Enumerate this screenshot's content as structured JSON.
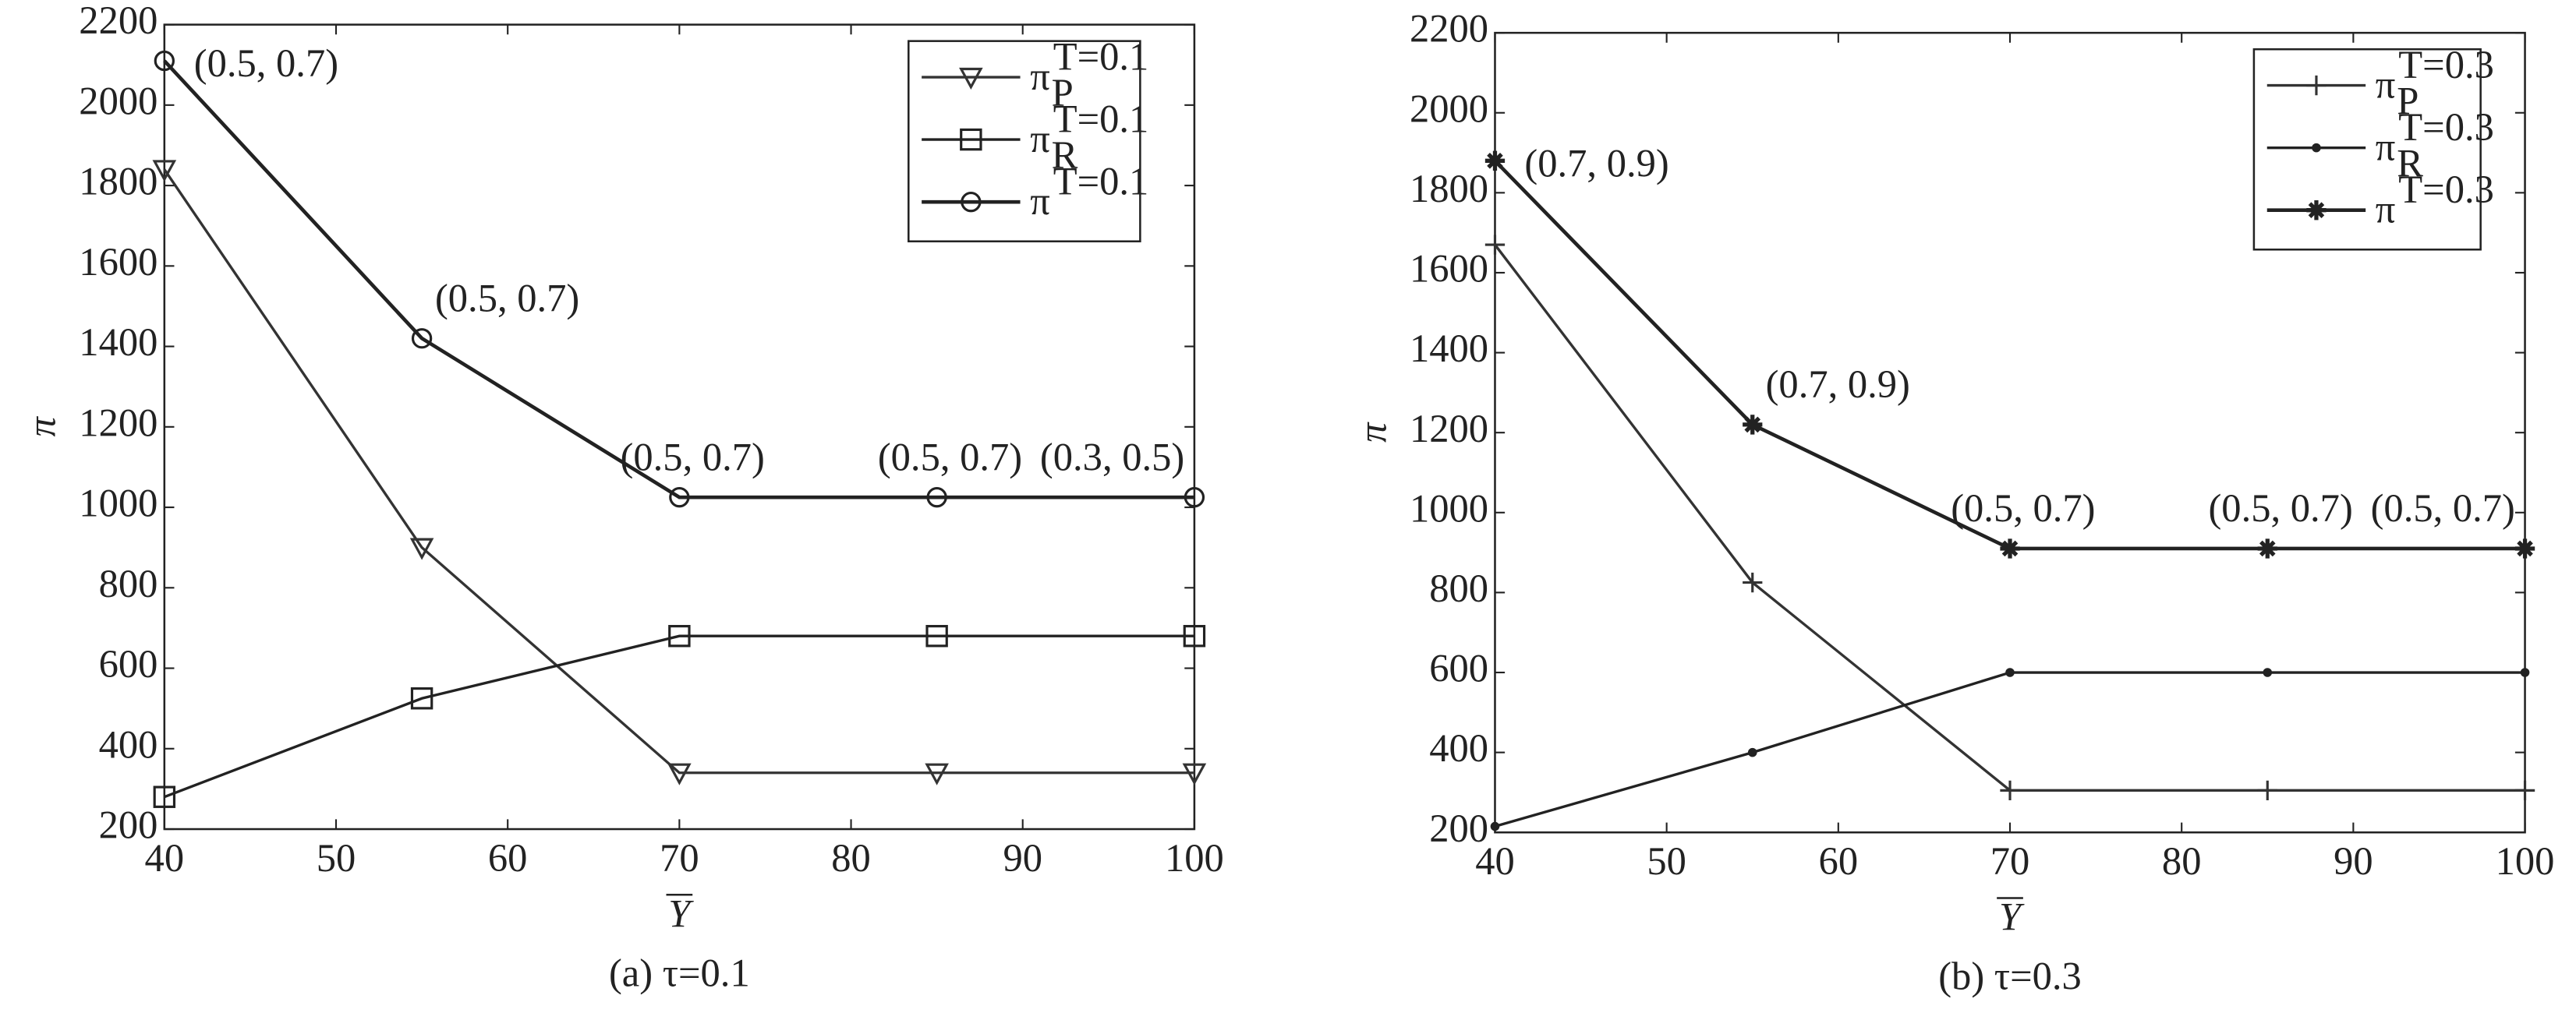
{
  "chart_data": [
    {
      "type": "line",
      "caption": "(a) τ=0.1",
      "xlabel": "Y",
      "ylabel": "π",
      "x": [
        40,
        55,
        70,
        85,
        100
      ],
      "xlim": [
        40,
        100
      ],
      "xticks": [
        40,
        50,
        60,
        70,
        80,
        90,
        100
      ],
      "ylim": [
        200,
        2200
      ],
      "yticks": [
        200,
        400,
        600,
        800,
        1000,
        1200,
        1400,
        1600,
        1800,
        2000,
        2200
      ],
      "legend": "upper right",
      "series": [
        {
          "name": "π",
          "sub": "P",
          "sup": "T=0.1",
          "marker": "triangle-down",
          "color": "#333333",
          "values": [
            1840,
            900,
            340,
            340,
            340
          ]
        },
        {
          "name": "π",
          "sub": "R",
          "sup": "T=0.1",
          "marker": "square",
          "color": "#222222",
          "values": [
            280,
            525,
            680,
            680,
            680
          ]
        },
        {
          "name": "π",
          "sup": "T=0.1",
          "marker": "circle",
          "color": "#222222",
          "values": [
            2110,
            1420,
            1025,
            1025,
            1025
          ],
          "annotations": [
            "(0.5, 0.7)",
            "(0.5, 0.7)",
            "(0.5, 0.7)",
            "(0.5, 0.7)",
            "(0.3, 0.5)"
          ]
        }
      ]
    },
    {
      "type": "line",
      "caption": "(b) τ=0.3",
      "xlabel": "Y",
      "ylabel": "π",
      "x": [
        40,
        55,
        70,
        85,
        100
      ],
      "xlim": [
        40,
        100
      ],
      "xticks": [
        40,
        50,
        60,
        70,
        80,
        90,
        100
      ],
      "ylim": [
        200,
        2200
      ],
      "yticks": [
        200,
        400,
        600,
        800,
        1000,
        1200,
        1400,
        1600,
        1800,
        2000,
        2200
      ],
      "legend": "upper right",
      "series": [
        {
          "name": "π",
          "sub": "P",
          "sup": "T=0.3",
          "marker": "plus",
          "color": "#333333",
          "values": [
            1670,
            825,
            305,
            305,
            305
          ]
        },
        {
          "name": "π",
          "sub": "R",
          "sup": "T=0.3",
          "marker": "dot",
          "color": "#222222",
          "values": [
            215,
            400,
            600,
            600,
            600
          ]
        },
        {
          "name": "π",
          "sup": "T=0.3",
          "marker": "star",
          "color": "#222222",
          "values": [
            1880,
            1220,
            910,
            910,
            910
          ],
          "annotations": [
            "(0.7, 0.9)",
            "(0.7, 0.9)",
            "(0.5, 0.7)",
            "(0.5, 0.7)",
            "(0.5, 0.7)"
          ]
        }
      ]
    }
  ]
}
